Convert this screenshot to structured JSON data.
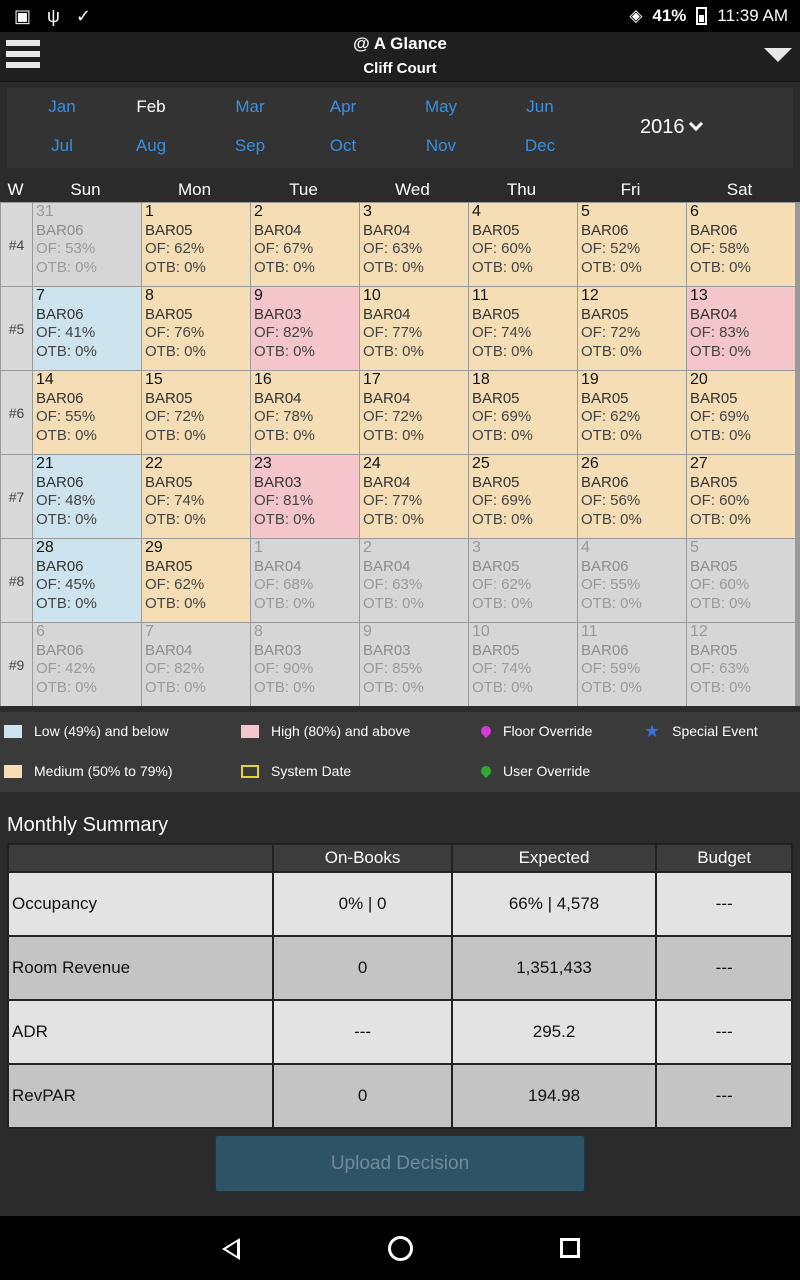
{
  "status_bar": {
    "battery": "41%",
    "time": "11:39 AM"
  },
  "header": {
    "title": "@ A Glance",
    "subtitle": "Cliff Court"
  },
  "months": [
    "Jan",
    "Feb",
    "Mar",
    "Apr",
    "May",
    "Jun",
    "Jul",
    "Aug",
    "Sep",
    "Oct",
    "Nov",
    "Dec"
  ],
  "selected_month": "Feb",
  "year": "2016",
  "calendar": {
    "week_col_label": "W",
    "day_names": [
      "Sun",
      "Mon",
      "Tue",
      "Wed",
      "Thu",
      "Fri",
      "Sat"
    ],
    "weeks": [
      {
        "label": "#4",
        "days": [
          {
            "d": "31",
            "bar": "BAR06",
            "of": "OF: 53%",
            "otb": "OTB: 0%",
            "cls": "past"
          },
          {
            "d": "1",
            "bar": "BAR05",
            "of": "OF: 62%",
            "otb": "OTB: 0%",
            "cls": "med"
          },
          {
            "d": "2",
            "bar": "BAR04",
            "of": "OF: 67%",
            "otb": "OTB: 0%",
            "cls": "med"
          },
          {
            "d": "3",
            "bar": "BAR04",
            "of": "OF: 63%",
            "otb": "OTB: 0%",
            "cls": "med"
          },
          {
            "d": "4",
            "bar": "BAR05",
            "of": "OF: 60%",
            "otb": "OTB: 0%",
            "cls": "med"
          },
          {
            "d": "5",
            "bar": "BAR06",
            "of": "OF: 52%",
            "otb": "OTB: 0%",
            "cls": "med"
          },
          {
            "d": "6",
            "bar": "BAR06",
            "of": "OF: 58%",
            "otb": "OTB: 0%",
            "cls": "med"
          }
        ]
      },
      {
        "label": "#5",
        "days": [
          {
            "d": "7",
            "bar": "BAR06",
            "of": "OF: 41%",
            "otb": "OTB: 0%",
            "cls": "low"
          },
          {
            "d": "8",
            "bar": "BAR05",
            "of": "OF: 76%",
            "otb": "OTB: 0%",
            "cls": "med"
          },
          {
            "d": "9",
            "bar": "BAR03",
            "of": "OF: 82%",
            "otb": "OTB: 0%",
            "cls": "high"
          },
          {
            "d": "10",
            "bar": "BAR04",
            "of": "OF: 77%",
            "otb": "OTB: 0%",
            "cls": "med"
          },
          {
            "d": "11",
            "bar": "BAR05",
            "of": "OF: 74%",
            "otb": "OTB: 0%",
            "cls": "med"
          },
          {
            "d": "12",
            "bar": "BAR05",
            "of": "OF: 72%",
            "otb": "OTB: 0%",
            "cls": "med"
          },
          {
            "d": "13",
            "bar": "BAR04",
            "of": "OF: 83%",
            "otb": "OTB: 0%",
            "cls": "high"
          }
        ]
      },
      {
        "label": "#6",
        "days": [
          {
            "d": "14",
            "bar": "BAR06",
            "of": "OF: 55%",
            "otb": "OTB: 0%",
            "cls": "med"
          },
          {
            "d": "15",
            "bar": "BAR05",
            "of": "OF: 72%",
            "otb": "OTB: 0%",
            "cls": "med"
          },
          {
            "d": "16",
            "bar": "BAR04",
            "of": "OF: 78%",
            "otb": "OTB: 0%",
            "cls": "med"
          },
          {
            "d": "17",
            "bar": "BAR04",
            "of": "OF: 72%",
            "otb": "OTB: 0%",
            "cls": "med"
          },
          {
            "d": "18",
            "bar": "BAR05",
            "of": "OF: 69%",
            "otb": "OTB: 0%",
            "cls": "med"
          },
          {
            "d": "19",
            "bar": "BAR05",
            "of": "OF: 62%",
            "otb": "OTB: 0%",
            "cls": "med"
          },
          {
            "d": "20",
            "bar": "BAR05",
            "of": "OF: 69%",
            "otb": "OTB: 0%",
            "cls": "med"
          }
        ]
      },
      {
        "label": "#7",
        "days": [
          {
            "d": "21",
            "bar": "BAR06",
            "of": "OF: 48%",
            "otb": "OTB: 0%",
            "cls": "low"
          },
          {
            "d": "22",
            "bar": "BAR05",
            "of": "OF: 74%",
            "otb": "OTB: 0%",
            "cls": "med"
          },
          {
            "d": "23",
            "bar": "BAR03",
            "of": "OF: 81%",
            "otb": "OTB: 0%",
            "cls": "high"
          },
          {
            "d": "24",
            "bar": "BAR04",
            "of": "OF: 77%",
            "otb": "OTB: 0%",
            "cls": "med"
          },
          {
            "d": "25",
            "bar": "BAR05",
            "of": "OF: 69%",
            "otb": "OTB: 0%",
            "cls": "med"
          },
          {
            "d": "26",
            "bar": "BAR06",
            "of": "OF: 56%",
            "otb": "OTB: 0%",
            "cls": "med"
          },
          {
            "d": "27",
            "bar": "BAR05",
            "of": "OF: 60%",
            "otb": "OTB: 0%",
            "cls": "med"
          }
        ]
      },
      {
        "label": "#8",
        "days": [
          {
            "d": "28",
            "bar": "BAR06",
            "of": "OF: 45%",
            "otb": "OTB: 0%",
            "cls": "low"
          },
          {
            "d": "29",
            "bar": "BAR05",
            "of": "OF: 62%",
            "otb": "OTB: 0%",
            "cls": "med"
          },
          {
            "d": "1",
            "bar": "BAR04",
            "of": "OF: 68%",
            "otb": "OTB: 0%",
            "cls": "fut"
          },
          {
            "d": "2",
            "bar": "BAR04",
            "of": "OF: 63%",
            "otb": "OTB: 0%",
            "cls": "fut"
          },
          {
            "d": "3",
            "bar": "BAR05",
            "of": "OF: 62%",
            "otb": "OTB: 0%",
            "cls": "fut"
          },
          {
            "d": "4",
            "bar": "BAR06",
            "of": "OF: 55%",
            "otb": "OTB: 0%",
            "cls": "fut"
          },
          {
            "d": "5",
            "bar": "BAR05",
            "of": "OF: 60%",
            "otb": "OTB: 0%",
            "cls": "fut"
          }
        ]
      },
      {
        "label": "#9",
        "days": [
          {
            "d": "6",
            "bar": "BAR06",
            "of": "OF: 42%",
            "otb": "OTB: 0%",
            "cls": "fut"
          },
          {
            "d": "7",
            "bar": "BAR04",
            "of": "OF: 82%",
            "otb": "OTB: 0%",
            "cls": "fut"
          },
          {
            "d": "8",
            "bar": "BAR03",
            "of": "OF: 90%",
            "otb": "OTB: 0%",
            "cls": "fut"
          },
          {
            "d": "9",
            "bar": "BAR03",
            "of": "OF: 85%",
            "otb": "OTB: 0%",
            "cls": "fut"
          },
          {
            "d": "10",
            "bar": "BAR05",
            "of": "OF: 74%",
            "otb": "OTB: 0%",
            "cls": "fut"
          },
          {
            "d": "11",
            "bar": "BAR06",
            "of": "OF: 59%",
            "otb": "OTB: 0%",
            "cls": "fut"
          },
          {
            "d": "12",
            "bar": "BAR05",
            "of": "OF: 63%",
            "otb": "OTB: 0%",
            "cls": "fut"
          }
        ]
      }
    ]
  },
  "legend": {
    "low": "Low (49%) and below",
    "high": "High (80%) and above",
    "floor_override": "Floor Override",
    "special_event": "Special Event",
    "medium": "Medium (50% to 79%)",
    "system_date": "System Date",
    "user_override": "User Override"
  },
  "summary": {
    "title": "Monthly Summary",
    "columns": [
      "",
      "On-Books",
      "Expected",
      "Budget"
    ],
    "rows": [
      {
        "label": "Occupancy",
        "on_books": "0% | 0",
        "expected": "66% | 4,578",
        "budget": "---"
      },
      {
        "label": "Room Revenue",
        "on_books": "0",
        "expected": "1,351,433",
        "budget": "---"
      },
      {
        "label": "ADR",
        "on_books": "---",
        "expected": "295.2",
        "budget": "---"
      },
      {
        "label": "RevPAR",
        "on_books": "0",
        "expected": "194.98",
        "budget": "---"
      }
    ]
  },
  "upload_button": "Upload Decision",
  "colors": {
    "low": "#cde4ee",
    "medium": "#f5deb5",
    "high": "#f4c6cc",
    "out_of_month": "#d6d6d6",
    "month_link": "#3a8fe0"
  }
}
